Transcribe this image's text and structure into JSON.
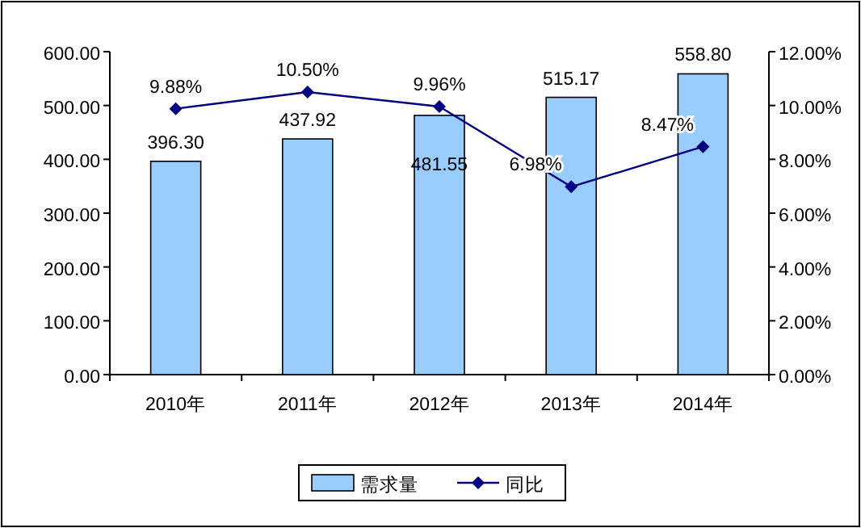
{
  "chart_data": {
    "type": "bar",
    "categories": [
      "2010年",
      "2011年",
      "2012年",
      "2013年",
      "2014年"
    ],
    "series": [
      {
        "name": "需求量",
        "color": "#99ccff",
        "values": [
          396.3,
          437.92,
          481.55,
          515.17,
          558.8
        ],
        "value_labels": [
          "396.30",
          "437.92",
          "481.55",
          "515.17",
          "558.80"
        ]
      },
      {
        "name": "同比",
        "type": "line",
        "axis": "y2",
        "color": "#000080",
        "marker": "diamond",
        "values": [
          9.88,
          10.5,
          9.96,
          6.98,
          8.47
        ],
        "value_labels": [
          "9.88%",
          "10.50%",
          "9.96%",
          "6.98%",
          "8.47%"
        ]
      }
    ],
    "ylim": [
      0,
      600
    ],
    "yticks": [
      {
        "value": 0,
        "label": "0.00"
      },
      {
        "value": 100,
        "label": "100.00"
      },
      {
        "value": 200,
        "label": "200.00"
      },
      {
        "value": 300,
        "label": "300.00"
      },
      {
        "value": 400,
        "label": "400.00"
      },
      {
        "value": 500,
        "label": "500.00"
      },
      {
        "value": 600,
        "label": "600.00"
      }
    ],
    "y2lim": [
      0,
      12
    ],
    "y2ticks": [
      {
        "value": 0,
        "label": "0.00%"
      },
      {
        "value": 2,
        "label": "2.00%"
      },
      {
        "value": 4,
        "label": "4.00%"
      },
      {
        "value": 6,
        "label": "6.00%"
      },
      {
        "value": 8,
        "label": "8.00%"
      },
      {
        "value": 10,
        "label": "10.00%"
      },
      {
        "value": 12,
        "label": "12.00%"
      }
    ],
    "grid": false,
    "legend": "bottom"
  }
}
